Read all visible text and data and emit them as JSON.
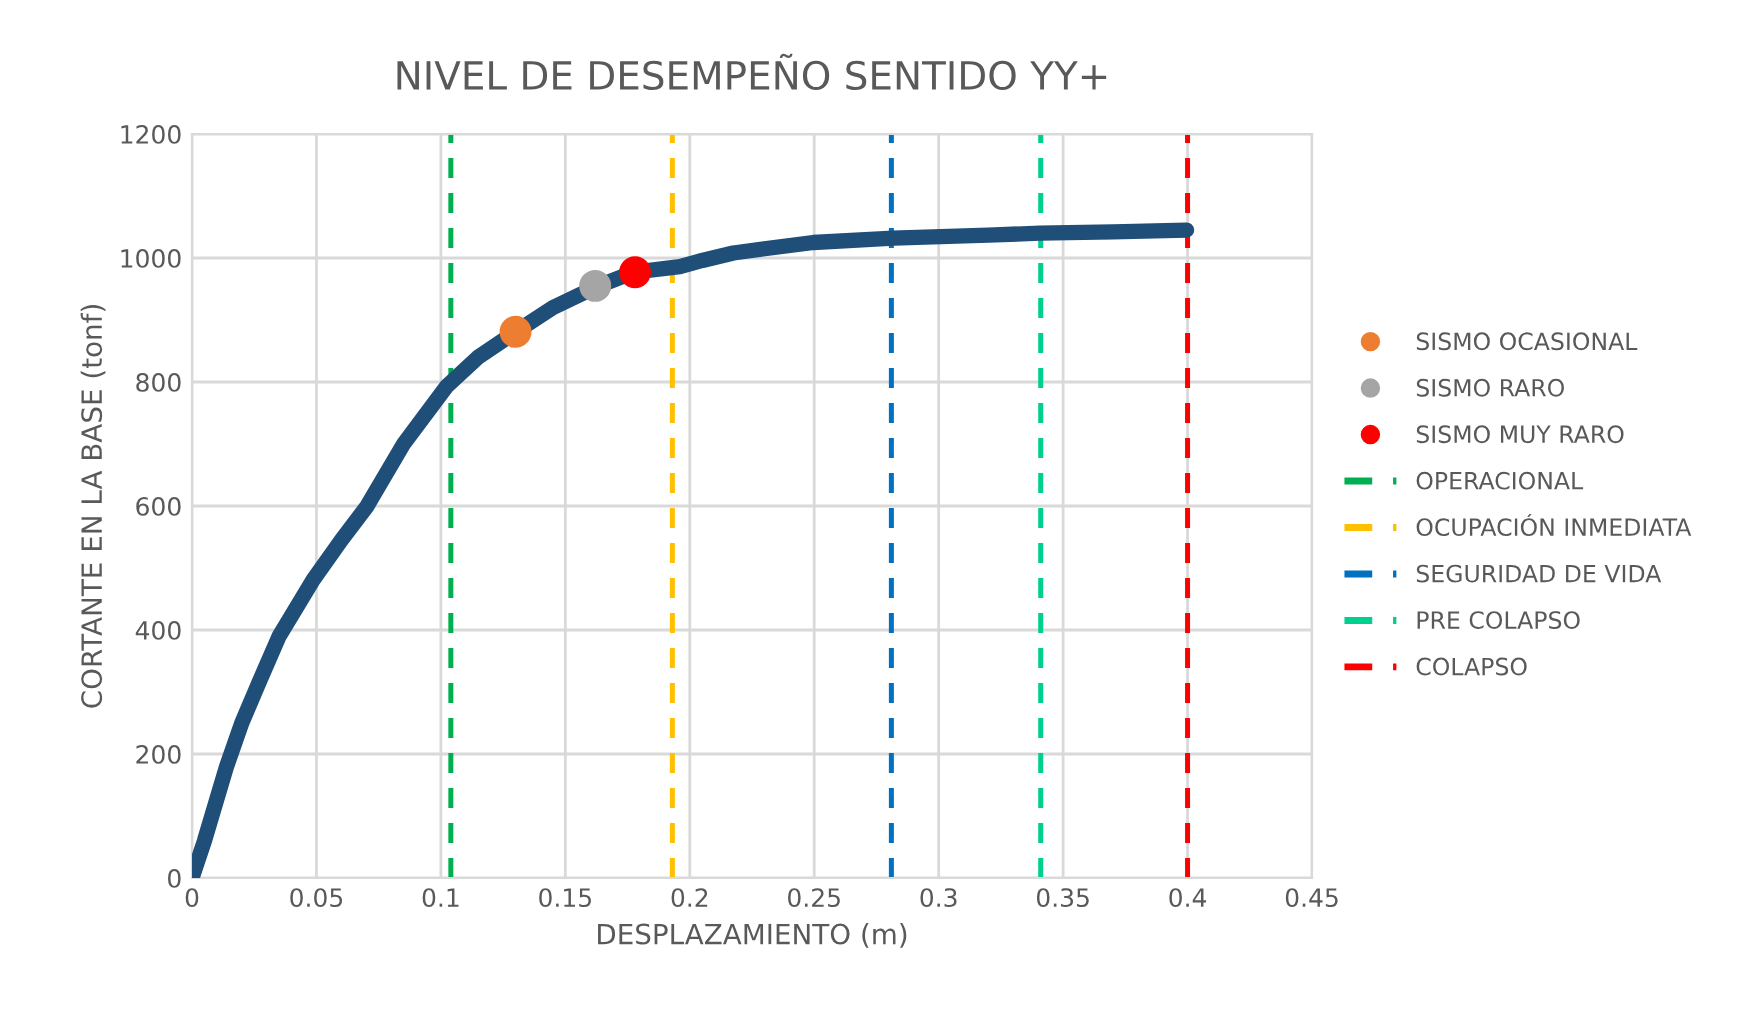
{
  "chart_data": {
    "type": "line",
    "title": "NIVEL DE DESEMPEÑO SENTIDO YY+",
    "xlabel": "DESPLAZAMIENTO (m)",
    "ylabel": "CORTANTE EN LA BASE (tonf)",
    "xlim": [
      0,
      0.45
    ],
    "xticks": [
      0,
      0.05,
      0.1,
      0.15,
      0.2,
      0.25,
      0.3,
      0.35,
      0.4,
      0.45
    ],
    "ylim": [
      0,
      1200
    ],
    "yticks": [
      0,
      200,
      400,
      600,
      800,
      1000,
      1200
    ],
    "grid": true,
    "legend": "right",
    "series": [
      {
        "color": "#1f4e79",
        "marker": "none",
        "x": [
          0,
          0.005,
          0.0139,
          0.02,
          0.0273,
          0.035,
          0.0487,
          0.06,
          0.0702,
          0.085,
          0.1023,
          0.115,
          0.129,
          0.145,
          0.1626,
          0.1773,
          0.196,
          0.205,
          0.2175,
          0.23,
          0.2496,
          0.2818,
          0.32,
          0.3407,
          0.37,
          0.3996
        ],
        "values": [
          0,
          60,
          180,
          250,
          319,
          390,
          481,
          545,
          599,
          700,
          793,
          840,
          878,
          920,
          954,
          977,
          986,
          996,
          1008,
          1015,
          1025,
          1032,
          1037,
          1040,
          1042,
          1045
        ]
      },
      {
        "type": "scatter",
        "name": "SISMO OCASIONAL",
        "color": "#ed7d31",
        "marker": "circle",
        "x": [
          0.13
        ],
        "values": [
          881
        ]
      },
      {
        "type": "scatter",
        "name": "SISMO RARO",
        "color": "#a5a5a5",
        "marker": "circle",
        "x": [
          0.162
        ],
        "values": [
          955
        ]
      },
      {
        "type": "scatter",
        "name": "SISMO MUY RARO",
        "color": "#ff0000",
        "marker": "circle",
        "x": [
          0.178
        ],
        "values": [
          977
        ]
      },
      {
        "type": "line",
        "name": "OPERACIONAL",
        "color": "#00b050",
        "marker": "none",
        "line_style": "dashed",
        "x": [
          0.104,
          0.104
        ],
        "values": [
          0,
          1200
        ]
      },
      {
        "type": "line",
        "name": "OCUPACIÓN INMEDIATA",
        "color": "#ffc000",
        "marker": "none",
        "line_style": "dashed",
        "x": [
          0.193,
          0.193
        ],
        "values": [
          0,
          1200
        ]
      },
      {
        "type": "line",
        "name": "SEGURIDAD DE VIDA",
        "color": "#0070c0",
        "marker": "none",
        "line_style": "dashed",
        "x": [
          0.281,
          0.281
        ],
        "values": [
          0,
          1200
        ]
      },
      {
        "type": "line",
        "name": "PRE COLAPSO",
        "color": "#00d08f",
        "marker": "none",
        "line_style": "dashed",
        "x": [
          0.341,
          0.341
        ],
        "values": [
          0,
          1200
        ]
      },
      {
        "type": "line",
        "name": "COLAPSO",
        "color": "#ff0000",
        "marker": "none",
        "line_style": "dashed",
        "x": [
          0.4,
          0.4
        ],
        "values": [
          0,
          1200
        ]
      }
    ]
  }
}
